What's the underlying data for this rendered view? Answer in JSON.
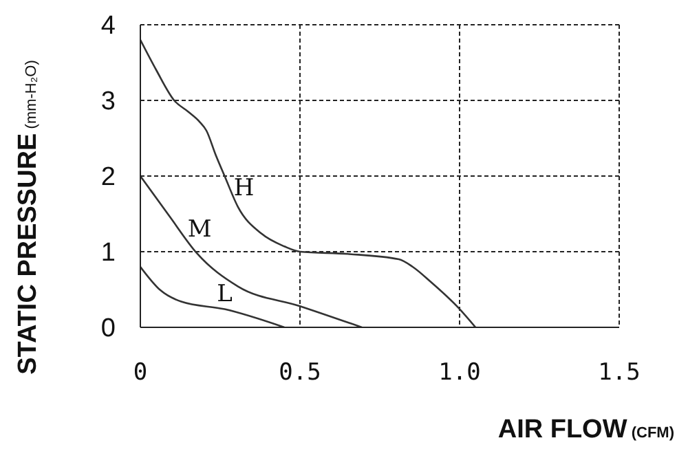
{
  "chart_data": {
    "type": "line",
    "xlabel": "AIR FLOW (CFM)",
    "ylabel": "STATIC PRESSURE (mm-H₂O)",
    "xlim": [
      0,
      1.5
    ],
    "xticks": [
      0,
      {
        "value": 0.5,
        "label": "0.5"
      },
      {
        "value": 1,
        "label": "1.0"
      },
      {
        "value": 1.5,
        "label": "1.5"
      }
    ],
    "ylim": [
      0,
      4
    ],
    "yticks": [
      0,
      1,
      2,
      3,
      4
    ],
    "grid": true,
    "marker": "none",
    "line_style": "solid",
    "series": [
      {
        "name": "H",
        "color": "#333333",
        "x": [
          0,
          0.05,
          0.106,
          0.15,
          0.185,
          0.207,
          0.236,
          0.264,
          0.306,
          0.379,
          0.451,
          0.5,
          0.65,
          0.81,
          0.853,
          0.91,
          0.996,
          1.05
        ],
        "values": [
          3.8,
          3.4,
          3.0,
          2.85,
          2.72,
          2.6,
          2.28,
          2.0,
          1.59,
          1.24,
          1.07,
          1.0,
          0.97,
          0.9,
          0.8,
          0.6,
          0.26,
          0
        ]
      },
      {
        "name": "M",
        "color": "#333333",
        "x": [
          0,
          0.091,
          0.177,
          0.306,
          0.5,
          0.694
        ],
        "values": [
          2.0,
          1.47,
          0.98,
          0.54,
          0.28,
          0
        ]
      },
      {
        "name": "L",
        "color": "#333333",
        "x": [
          0,
          0.063,
          0.128,
          0.264,
          0.451
        ],
        "values": [
          0.8,
          0.49,
          0.34,
          0.24,
          0
        ]
      }
    ]
  }
}
